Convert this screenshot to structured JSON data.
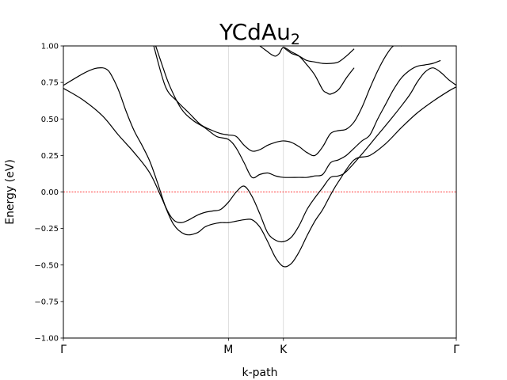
{
  "chart_data": {
    "type": "line",
    "title": "YCdAu",
    "title_subscript": "2",
    "xlabel": "k-path",
    "ylabel": "Energy (eV)",
    "ylim": [
      -1.0,
      1.0
    ],
    "yticks": [
      -1.0,
      -0.75,
      -0.5,
      -0.25,
      0.0,
      0.25,
      0.5,
      0.75,
      1.0
    ],
    "ytick_labels": [
      "−1.00",
      "−0.75",
      "−0.50",
      "−0.25",
      "0.00",
      "0.25",
      "0.50",
      "0.75",
      "1.00"
    ],
    "xlim": [
      0,
      1
    ],
    "kpoints": [
      {
        "label": "Γ",
        "x": 0.0
      },
      {
        "label": "M",
        "x": 0.42
      },
      {
        "label": "K",
        "x": 0.56
      },
      {
        "label": "Γ",
        "x": 1.0
      }
    ],
    "fermi_level": 0.0,
    "colors": {
      "band": "#000000",
      "fermi": "#ff0000",
      "kline": "#d3d3d3"
    },
    "series": [
      {
        "x": [
          0.0,
          0.05,
          0.1,
          0.14,
          0.18,
          0.22,
          0.25,
          0.28,
          0.31,
          0.34,
          0.36,
          0.38,
          0.4,
          0.42,
          0.44,
          0.46,
          0.48,
          0.5,
          0.52,
          0.54,
          0.56,
          0.58,
          0.6,
          0.62,
          0.64,
          0.66,
          0.68,
          0.7,
          0.74,
          0.78,
          0.82,
          0.86,
          0.9,
          0.94,
          0.98,
          1.0
        ],
        "y": [
          0.71,
          0.63,
          0.52,
          0.39,
          0.27,
          0.13,
          -0.04,
          -0.22,
          -0.29,
          -0.28,
          -0.24,
          -0.22,
          -0.21,
          -0.21,
          -0.2,
          -0.19,
          -0.19,
          -0.24,
          -0.34,
          -0.45,
          -0.51,
          -0.49,
          -0.41,
          -0.3,
          -0.2,
          -0.12,
          -0.02,
          0.07,
          0.22,
          0.25,
          0.33,
          0.44,
          0.54,
          0.62,
          0.69,
          0.72
        ]
      },
      {
        "x": [
          0.0,
          0.05,
          0.08,
          0.1,
          0.11,
          0.12,
          0.14,
          0.16,
          0.18,
          0.2,
          0.22,
          0.24,
          0.26,
          0.28,
          0.3,
          0.32,
          0.34,
          0.36,
          0.38,
          0.4,
          0.42,
          0.44,
          0.46,
          0.48,
          0.5,
          0.52,
          0.54,
          0.56,
          0.58,
          0.6,
          0.62,
          0.64,
          0.66,
          0.68,
          0.7,
          0.72,
          0.76,
          0.8,
          0.84,
          0.88,
          0.9,
          0.92,
          0.94,
          0.96,
          0.98,
          1.0
        ],
        "y": [
          0.73,
          0.81,
          0.845,
          0.85,
          0.84,
          0.81,
          0.7,
          0.55,
          0.42,
          0.32,
          0.21,
          0.06,
          -0.1,
          -0.19,
          -0.21,
          -0.19,
          -0.16,
          -0.14,
          -0.13,
          -0.12,
          -0.07,
          0.0,
          0.04,
          -0.03,
          -0.15,
          -0.28,
          -0.33,
          -0.34,
          -0.31,
          -0.23,
          -0.12,
          -0.04,
          0.03,
          0.1,
          0.11,
          0.14,
          0.26,
          0.39,
          0.52,
          0.66,
          0.75,
          0.82,
          0.85,
          0.82,
          0.77,
          0.73
        ]
      },
      {
        "x": [
          0.235,
          0.25,
          0.27,
          0.3,
          0.33,
          0.36,
          0.39,
          0.42,
          0.44,
          0.46,
          0.48,
          0.5,
          0.52,
          0.54,
          0.56,
          0.6,
          0.62,
          0.64,
          0.66,
          0.68,
          0.7,
          0.72,
          0.74,
          0.76,
          0.78,
          0.8,
          0.82,
          0.84,
          0.86,
          0.88,
          0.9,
          0.92,
          0.94,
          0.96
        ],
        "y": [
          1.0,
          0.88,
          0.73,
          0.57,
          0.49,
          0.44,
          0.38,
          0.36,
          0.3,
          0.2,
          0.1,
          0.12,
          0.13,
          0.11,
          0.1,
          0.1,
          0.1,
          0.11,
          0.12,
          0.2,
          0.22,
          0.25,
          0.3,
          0.35,
          0.39,
          0.5,
          0.6,
          0.7,
          0.78,
          0.83,
          0.86,
          0.87,
          0.88,
          0.9
        ]
      },
      {
        "x": [
          0.23,
          0.26,
          0.29,
          0.32,
          0.35,
          0.38,
          0.4,
          0.42,
          0.44,
          0.46,
          0.48,
          0.5,
          0.52,
          0.54,
          0.56,
          0.58,
          0.6,
          0.62,
          0.64,
          0.66,
          0.68,
          0.7,
          0.72,
          0.74,
          0.76,
          0.78,
          0.8,
          0.82,
          0.84,
          0.86
        ],
        "y": [
          1.0,
          0.72,
          0.62,
          0.54,
          0.46,
          0.42,
          0.4,
          0.39,
          0.38,
          0.32,
          0.28,
          0.29,
          0.32,
          0.34,
          0.35,
          0.34,
          0.31,
          0.27,
          0.25,
          0.31,
          0.4,
          0.42,
          0.43,
          0.48,
          0.58,
          0.71,
          0.83,
          0.93,
          1.0,
          1.0
        ]
      },
      {
        "x": [
          0.5,
          0.51,
          0.52,
          0.53,
          0.54,
          0.55,
          0.56,
          0.58,
          0.6,
          0.62,
          0.64,
          0.66,
          0.67,
          0.68,
          0.7,
          0.72,
          0.74
        ],
        "y": [
          1.0,
          0.98,
          0.96,
          0.94,
          0.93,
          0.95,
          0.99,
          0.96,
          0.93,
          0.87,
          0.8,
          0.7,
          0.68,
          0.67,
          0.7,
          0.78,
          0.85
        ]
      },
      {
        "x": [
          0.56,
          0.58,
          0.6,
          0.62,
          0.64,
          0.66,
          0.68,
          0.7,
          0.72,
          0.74
        ],
        "y": [
          0.99,
          0.95,
          0.93,
          0.9,
          0.89,
          0.88,
          0.88,
          0.89,
          0.93,
          0.98
        ]
      }
    ]
  }
}
